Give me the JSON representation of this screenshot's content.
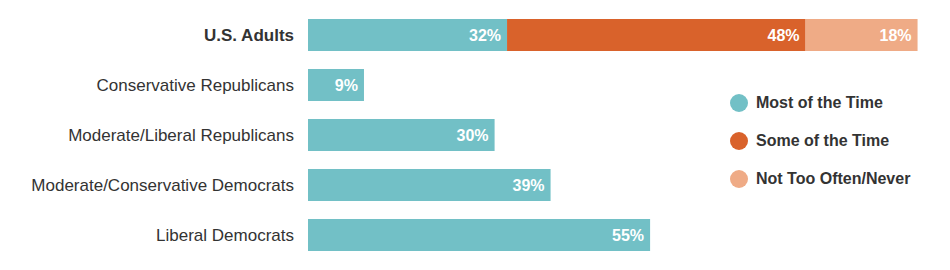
{
  "chart_data": {
    "type": "bar",
    "orientation": "horizontal",
    "stacked": true,
    "data_labels": true,
    "tick_labels": "y",
    "legend": "right",
    "categories": [
      "U.S. Adults",
      "Conservative Republicans",
      "Moderate/Liberal Republicans",
      "Moderate/Conservative Democrats",
      "Liberal Democrats"
    ],
    "xlim": [
      0,
      100
    ],
    "series": [
      {
        "name": "Most of the Time",
        "color": "#72c0c6",
        "values": [
          32,
          9,
          30,
          39,
          55
        ],
        "value_labels": [
          "32%",
          "9%",
          "30%",
          "39%",
          "55%"
        ]
      },
      {
        "name": "Some of the Time",
        "color": "#d9622b",
        "values": [
          48,
          null,
          null,
          null,
          null
        ],
        "value_labels": [
          "48%",
          null,
          null,
          null,
          null
        ]
      },
      {
        "name": "Not Too Often/Never",
        "color": "#efab86",
        "values": [
          18,
          null,
          null,
          null,
          null
        ],
        "value_labels": [
          "18%",
          null,
          null,
          null,
          null
        ]
      }
    ]
  }
}
